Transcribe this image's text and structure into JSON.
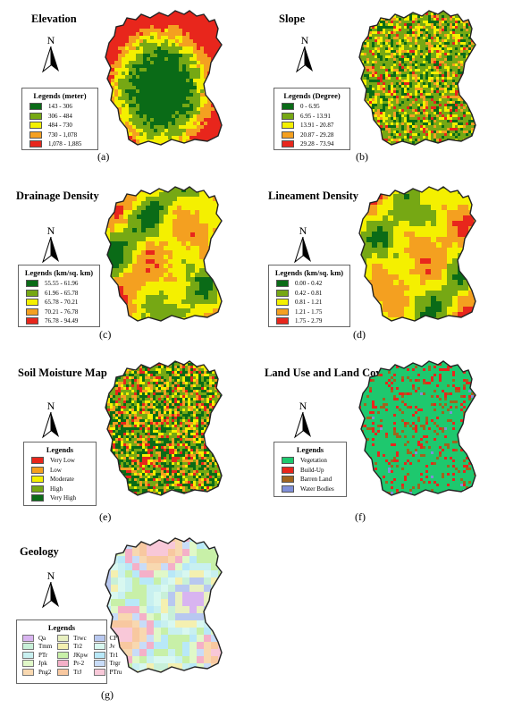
{
  "north_label": "N",
  "panels": [
    {
      "id": "a",
      "title": "Elevation",
      "label": "(a)",
      "legend_title": "Legends (meter)",
      "items": [
        {
          "text": "143 - 306",
          "color": "#0a6b17"
        },
        {
          "text": "306 - 484",
          "color": "#76a814"
        },
        {
          "text": "484 - 730",
          "color": "#f4f000"
        },
        {
          "text": "730 - 1,078",
          "color": "#f4a020"
        },
        {
          "text": "1,078 - 1,885",
          "color": "#e8261c"
        }
      ]
    },
    {
      "id": "b",
      "title": "Slope",
      "label": "(b)",
      "legend_title": "Legends (Degree)",
      "items": [
        {
          "text": "0 - 6.95",
          "color": "#0a6b17"
        },
        {
          "text": "6.95 - 13.91",
          "color": "#76a814"
        },
        {
          "text": "13.91 - 20.87",
          "color": "#f4f000"
        },
        {
          "text": "20.87 - 29.28",
          "color": "#f4a020"
        },
        {
          "text": "29.28 - 73.94",
          "color": "#e8261c"
        }
      ]
    },
    {
      "id": "c",
      "title": "Drainage Density",
      "label": "(c)",
      "legend_title": "Legends (km/sq. km)",
      "items": [
        {
          "text": "55.55 - 61.96",
          "color": "#0a6b17"
        },
        {
          "text": "61.96 - 65.78",
          "color": "#76a814"
        },
        {
          "text": "65.78 - 70.21",
          "color": "#f4f000"
        },
        {
          "text": "70.21 - 76.78",
          "color": "#f4a020"
        },
        {
          "text": "76.78 - 94.49",
          "color": "#e8261c"
        }
      ]
    },
    {
      "id": "d",
      "title": "Lineament Density",
      "label": "(d)",
      "legend_title": "Legends (km/sq. km)",
      "items": [
        {
          "text": "0.00 - 0.42",
          "color": "#0a6b17"
        },
        {
          "text": "0.42 - 0.81",
          "color": "#76a814"
        },
        {
          "text": "0.81 - 1.21",
          "color": "#f4f000"
        },
        {
          "text": "1.21 - 1.75",
          "color": "#f4a020"
        },
        {
          "text": "1.75 - 2.79",
          "color": "#e8261c"
        }
      ]
    },
    {
      "id": "e",
      "title": "Soil Moisture Map",
      "label": "(e)",
      "legend_title": "Legends",
      "items": [
        {
          "text": "Very Low",
          "color": "#e8261c"
        },
        {
          "text": "Low",
          "color": "#f4a020"
        },
        {
          "text": "Moderate",
          "color": "#f4f000"
        },
        {
          "text": "High",
          "color": "#76a814"
        },
        {
          "text": "Very High",
          "color": "#0a6b17"
        }
      ]
    },
    {
      "id": "f",
      "title": "Land Use and Land Cover",
      "label": "(f)",
      "legend_title": "Legends",
      "items": [
        {
          "text": "Vegetation",
          "color": "#1ec86e"
        },
        {
          "text": "Build-Up",
          "color": "#e8261c"
        },
        {
          "text": "Barren Land",
          "color": "#a0641e"
        },
        {
          "text": "Water Bodies",
          "color": "#7f8fd8"
        }
      ]
    },
    {
      "id": "g",
      "title": "Geology",
      "label": "(g)",
      "legend_title": "Legends",
      "items": [
        {
          "text": "Qa",
          "color": "#d8b4f0"
        },
        {
          "text": "Trwc",
          "color": "#e8f0c0"
        },
        {
          "text": "CP",
          "color": "#b8c8f0"
        },
        {
          "text": "Tmm",
          "color": "#c8f0d8"
        },
        {
          "text": "Tr2",
          "color": "#f4f0b0"
        },
        {
          "text": "Jv",
          "color": "#d8f8f0"
        },
        {
          "text": "PTr",
          "color": "#c8f0f0"
        },
        {
          "text": "JKpw",
          "color": "#c8f0a8"
        },
        {
          "text": "Tr1",
          "color": "#b8e8f8"
        },
        {
          "text": "Jpk",
          "color": "#e0f8c8"
        },
        {
          "text": "Pr-2",
          "color": "#f4b0c8"
        },
        {
          "text": "Trgr",
          "color": "#c8dcf8"
        },
        {
          "text": "Png2",
          "color": "#f8d8b0"
        },
        {
          "text": "TrJ",
          "color": "#f8c8a0"
        },
        {
          "text": "PTru",
          "color": "#f8c8d8"
        }
      ]
    }
  ]
}
